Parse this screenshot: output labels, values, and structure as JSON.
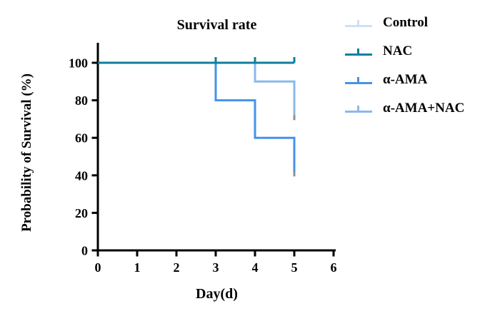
{
  "page": {
    "background": "#ffffff"
  },
  "chart_data": {
    "type": "line",
    "subtype": "kaplan-meier-step-survival",
    "title": "Survival rate",
    "xlabel": "Day(d)",
    "ylabel": "Probability of Survival (%)",
    "xlim": [
      0,
      6
    ],
    "ylim": [
      0,
      100
    ],
    "xticks": [
      0,
      1,
      2,
      3,
      4,
      5,
      6
    ],
    "yticks": [
      0,
      20,
      40,
      60,
      80,
      100
    ],
    "grid": false,
    "legend_position": "right-outside",
    "axis_color": "#000000",
    "end_tip_color": "#8f8f8f",
    "series": [
      {
        "name": "Control",
        "color": "#cfe0f7",
        "points": [
          [
            0,
            100
          ],
          [
            5,
            100
          ]
        ],
        "censor_ticks_days": [],
        "end_tip": false
      },
      {
        "name": "α-AMA+NAC",
        "color": "#8ab8ee",
        "points": [
          [
            0,
            100
          ],
          [
            4,
            100
          ],
          [
            4,
            90
          ],
          [
            5,
            90
          ],
          [
            5,
            70
          ]
        ],
        "censor_ticks_days": [],
        "end_tip": true
      },
      {
        "name": "α-AMA",
        "color": "#4493e8",
        "points": [
          [
            0,
            100
          ],
          [
            3,
            100
          ],
          [
            3,
            80
          ],
          [
            4,
            80
          ],
          [
            4,
            60
          ],
          [
            5,
            60
          ],
          [
            5,
            40
          ]
        ],
        "censor_ticks_days": [],
        "end_tip": true
      },
      {
        "name": "NAC",
        "color": "#0e7f9e",
        "points": [
          [
            0,
            100
          ],
          [
            5,
            100
          ]
        ],
        "censor_ticks_days": [
          3,
          4,
          5
        ],
        "end_tip": false
      }
    ],
    "legend": [
      {
        "label": "Control",
        "color": "#cfe0f7"
      },
      {
        "label": "NAC",
        "color": "#0e7f9e"
      },
      {
        "label": "α-AMA",
        "color": "#4493e8"
      },
      {
        "label": "α-AMA+NAC",
        "color": "#8ab8ee"
      }
    ]
  }
}
